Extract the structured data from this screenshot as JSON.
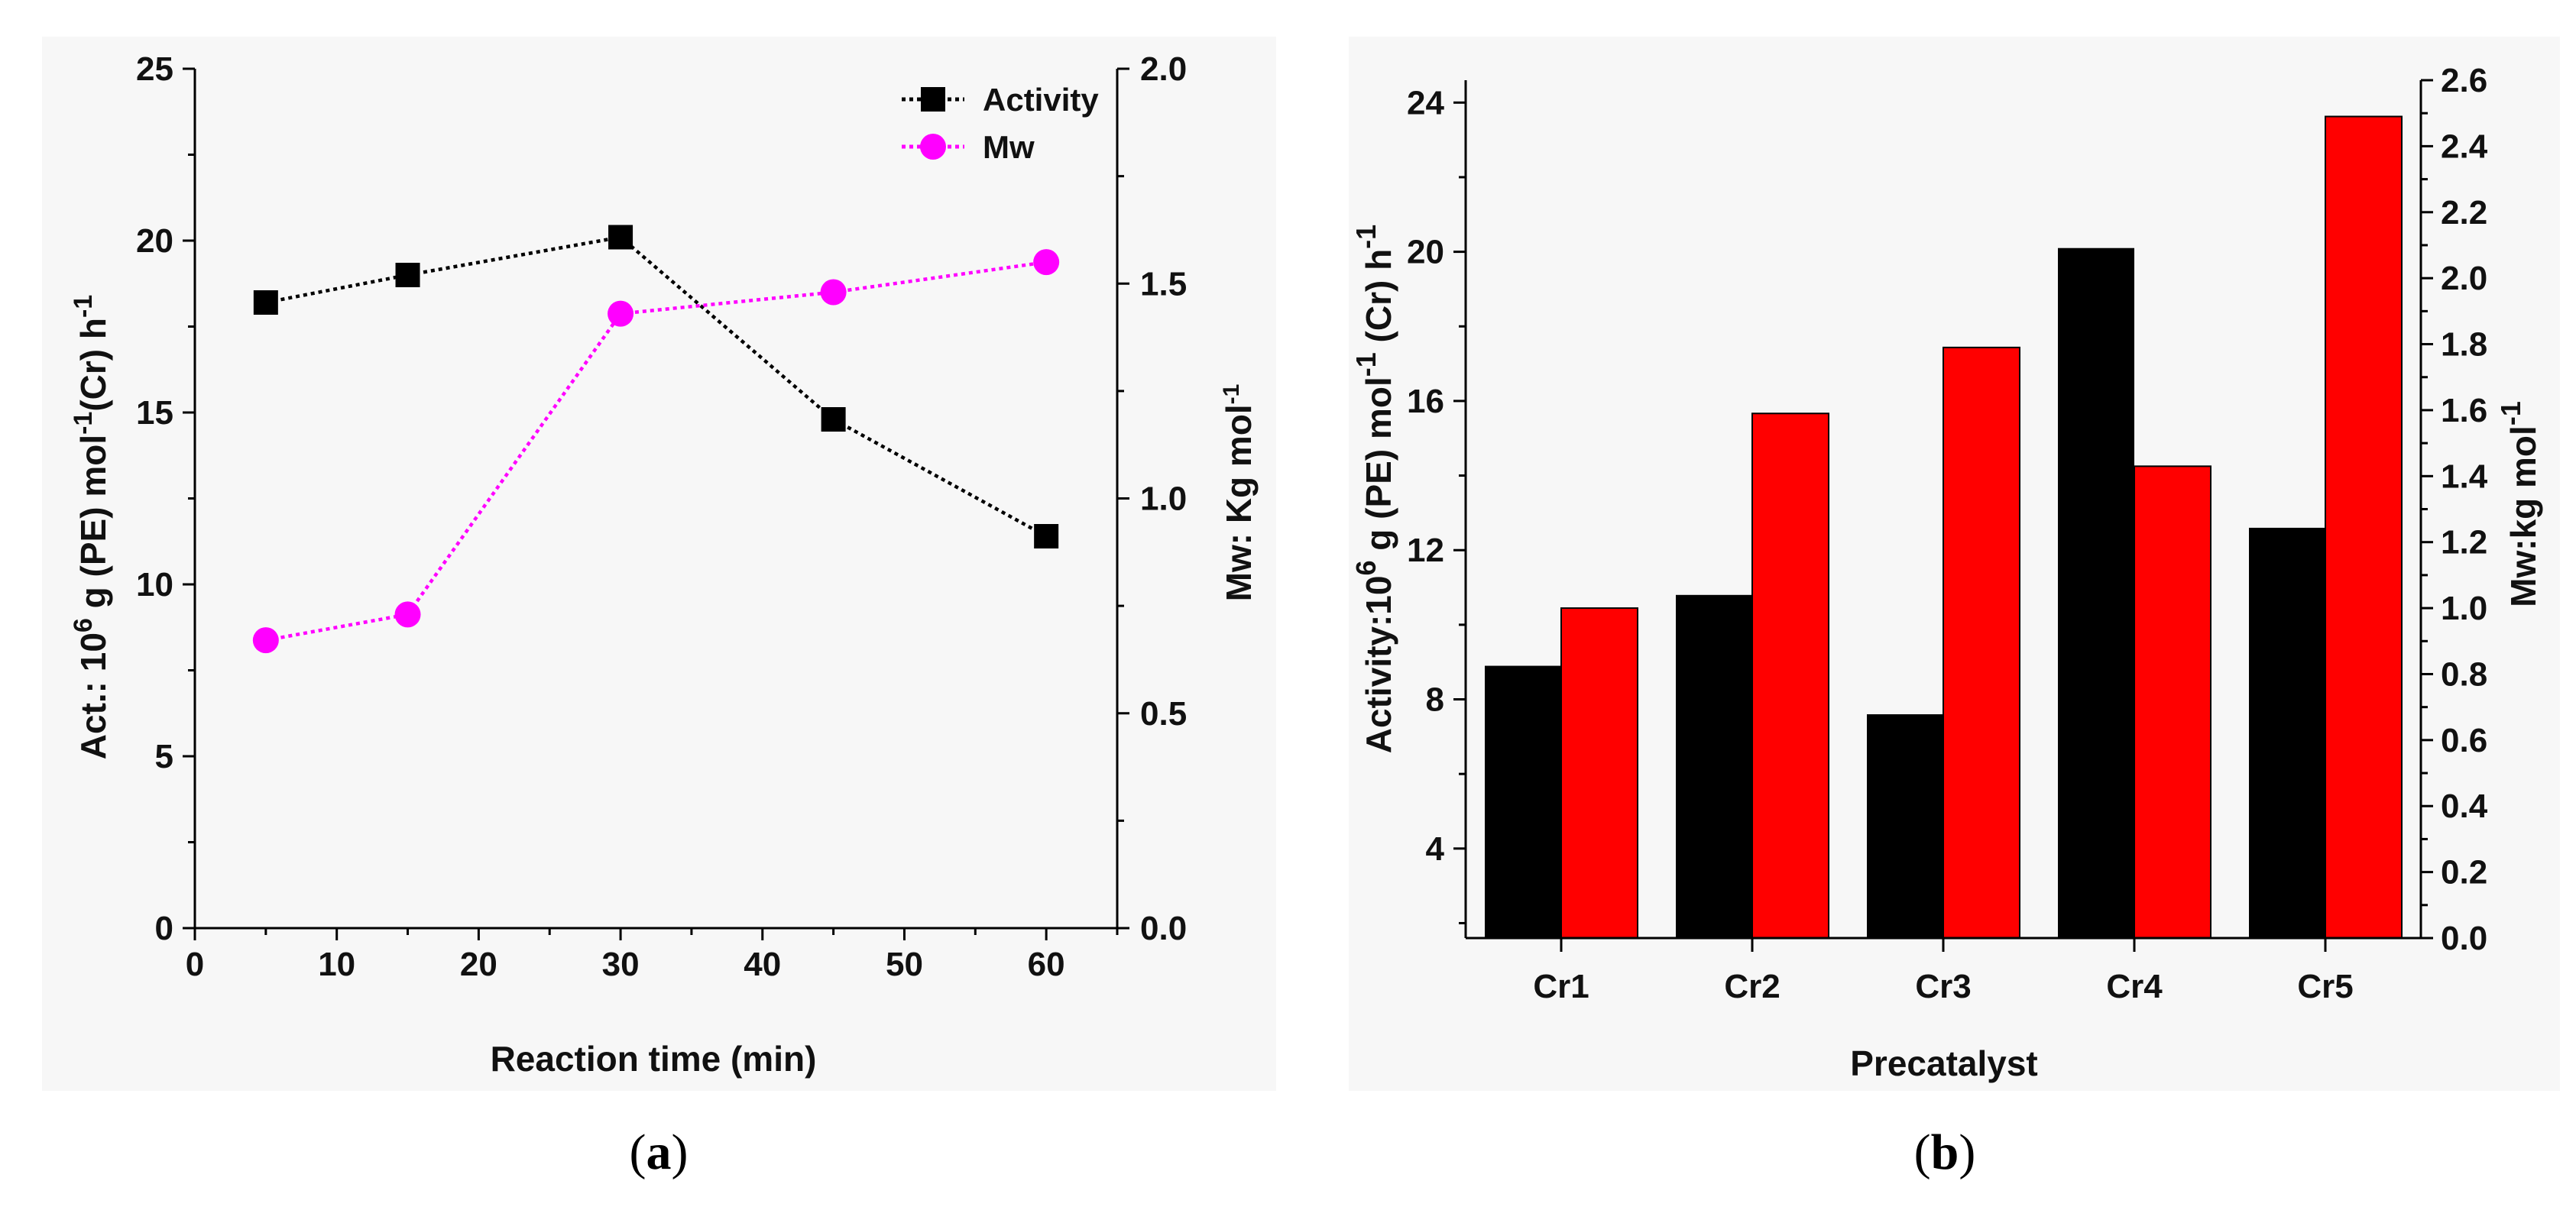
{
  "figure": {
    "caption_a_prefix": "(",
    "caption_a_letter": "a",
    "caption_a_suffix": ")",
    "caption_b_prefix": "(",
    "caption_b_letter": "b",
    "caption_b_suffix": ")"
  },
  "chart_data": [
    {
      "id": "a",
      "type": "line",
      "xlabel": "Reaction time (min)",
      "ylabel": {
        "prefix": "Act.: 10",
        "sup1": "6",
        "mid": " g (PE) mol",
        "sup2": "-1",
        "tail": "(Cr) h",
        "sup3": "-1"
      },
      "y2label": {
        "prefix": "Mw:  Kg mol",
        "sup": "-1"
      },
      "xlim": [
        0,
        65
      ],
      "ylim": [
        0,
        25
      ],
      "y2lim": [
        0,
        2.0
      ],
      "xticks": [
        "0",
        "10",
        "20",
        "30",
        "40",
        "50",
        "60"
      ],
      "yticks": [
        "0",
        "5",
        "10",
        "15",
        "20",
        "25"
      ],
      "y2ticks": [
        "0.0",
        "0.5",
        "1.0",
        "1.5",
        "2.0"
      ],
      "x": [
        5,
        15,
        30,
        45,
        60
      ],
      "series": [
        {
          "name": "Activity",
          "axis": "left",
          "marker": "square",
          "color": "#000000",
          "values": [
            18.2,
            19.0,
            20.1,
            14.8,
            11.4
          ]
        },
        {
          "name": "Mw",
          "axis": "right",
          "marker": "circle",
          "color": "#ff00ff",
          "values": [
            0.67,
            0.73,
            1.43,
            1.48,
            1.55
          ]
        }
      ],
      "legend_position": "top-right"
    },
    {
      "id": "b",
      "type": "bar",
      "xlabel": "Precatalyst",
      "ylabel": {
        "prefix": "Activity:10",
        "sup1": "6",
        "mid": " g (PE) mol",
        "sup2": "-1",
        "tail": " (Cr) h",
        "sup3": "-1"
      },
      "y2label": {
        "prefix": "Mw:kg mol",
        "sup": "-1"
      },
      "categories": [
        "Cr1",
        "Cr2",
        "Cr3",
        "Cr4",
        "Cr5"
      ],
      "ylim": [
        1.6,
        24.6
      ],
      "y2lim": [
        0,
        2.6
      ],
      "yticks": [
        "4",
        "8",
        "12",
        "16",
        "20",
        "24"
      ],
      "y2ticks": [
        "0.0",
        "0.2",
        "0.4",
        "0.6",
        "0.8",
        "1.0",
        "1.2",
        "1.4",
        "1.6",
        "1.8",
        "2.0",
        "2.2",
        "2.4",
        "2.6"
      ],
      "series": [
        {
          "name": "Activity",
          "axis": "left",
          "color": "#000000",
          "values": [
            8.9,
            10.8,
            7.6,
            20.1,
            12.6
          ]
        },
        {
          "name": "Mw",
          "axis": "right",
          "color": "#ff0000",
          "values": [
            1.0,
            1.59,
            1.79,
            1.43,
            2.49
          ]
        }
      ]
    }
  ]
}
